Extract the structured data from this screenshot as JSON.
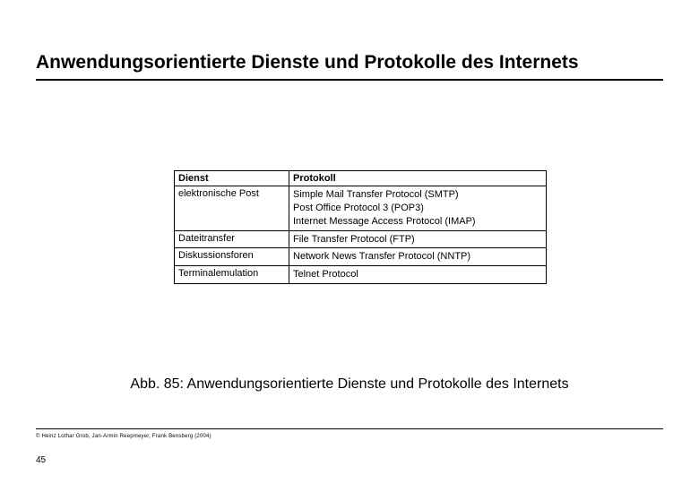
{
  "title": "Anwendungsorientierte Dienste und Protokolle des Internets",
  "table": {
    "headers": {
      "col1": "Dienst",
      "col2": "Protokoll"
    },
    "rows": [
      {
        "dienst": "elektronische Post",
        "protokoll": [
          "Simple Mail Transfer Protocol (SMTP)",
          "Post Office Protocol 3 (POP3)",
          "Internet Message Access Protocol (IMAP)"
        ]
      },
      {
        "dienst": "Dateitransfer",
        "protokoll": [
          "File Transfer Protocol (FTP)"
        ]
      },
      {
        "dienst": "Diskussionsforen",
        "protokoll": [
          "Network News Transfer Protocol (NNTP)"
        ]
      },
      {
        "dienst": "Terminalemulation",
        "protokoll": [
          "Telnet Protocol"
        ]
      }
    ]
  },
  "caption": "Abb. 85: Anwendungsorientierte Dienste und Protokolle des Internets",
  "copyright": "© Heinz Lothar Grob, Jan-Armin Reepmeyer, Frank Bensberg (2004)",
  "pageNumber": "45",
  "style": {
    "title_fontsize": 21,
    "caption_fontsize": 16,
    "table_fontsize": 11,
    "copyright_fontsize": 6,
    "pagenum_fontsize": 10,
    "text_color": "#000000",
    "background_color": "#ffffff",
    "border_color": "#000000"
  }
}
